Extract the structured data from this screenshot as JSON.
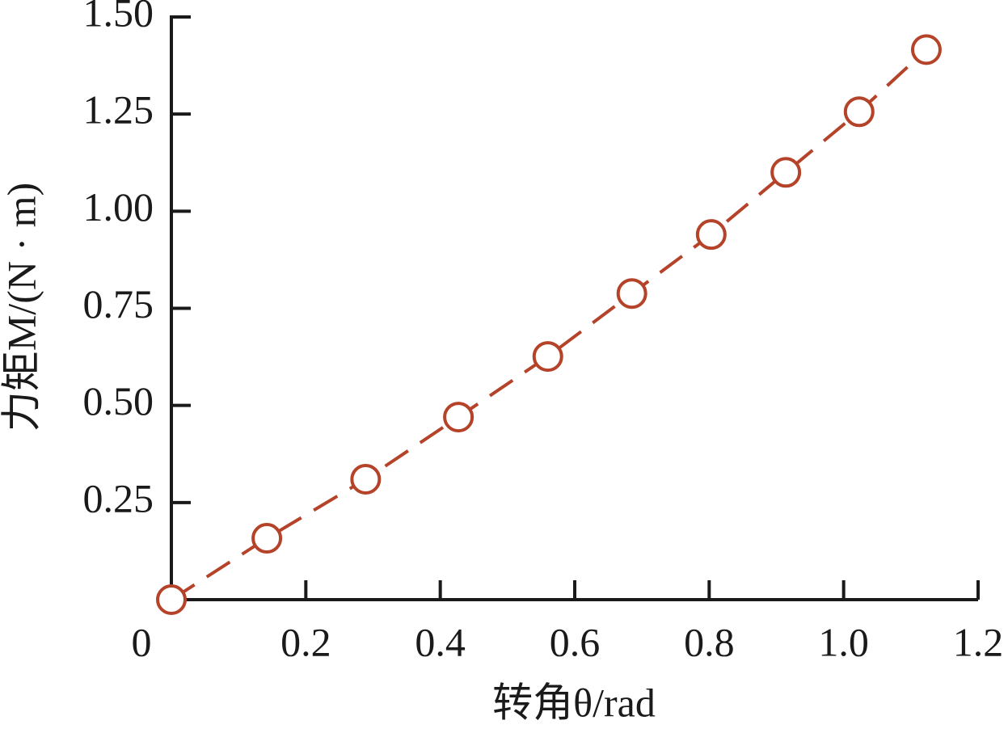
{
  "chart_data": {
    "type": "line",
    "x_label": "转角θ/rad",
    "y_label": "力矩M/(N · m)",
    "series": [
      {
        "name": "M",
        "color": "#b5432a",
        "x": [
          0,
          0.142,
          0.289,
          0.427,
          0.56,
          0.685,
          0.803,
          0.914,
          1.023,
          1.123
        ],
        "values": [
          0,
          0.158,
          0.31,
          0.47,
          0.626,
          0.788,
          0.94,
          1.1,
          1.256,
          1.416
        ]
      }
    ],
    "xlim": [
      0,
      1.2
    ],
    "xticks": [
      0,
      0.2,
      0.4,
      0.6,
      0.8,
      {
        "value": 1,
        "label": "1.0"
      },
      1.2
    ],
    "ylim": [
      0,
      1.5
    ],
    "yticks": [
      0.25,
      {
        "value": 0.5,
        "label": "0.50"
      },
      0.75,
      {
        "value": 1,
        "label": "1.00"
      },
      1.25,
      {
        "value": 1.5,
        "label": "1.50"
      }
    ],
    "grid": false
  }
}
